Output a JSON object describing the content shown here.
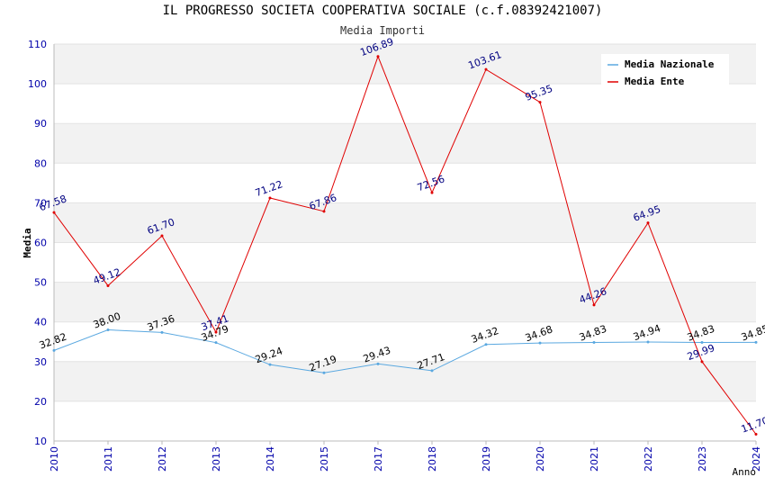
{
  "chart_data": {
    "type": "line",
    "title": "IL PROGRESSO SOCIETA COOPERATIVA SOCIALE (c.f.08392421007)",
    "subtitle": "Media Importi",
    "xlabel": "Anno",
    "ylabel": "Media",
    "ylim": [
      10,
      110
    ],
    "yticks": [
      "10",
      "20",
      "30",
      "40",
      "50",
      "60",
      "70",
      "80",
      "90",
      "100",
      "110"
    ],
    "categories": [
      "2010",
      "2011",
      "2012",
      "2013",
      "2014",
      "2015",
      "2017",
      "2018",
      "2019",
      "2020",
      "2021",
      "2022",
      "2023",
      "2024"
    ],
    "legend_position": "top-right",
    "grid": true,
    "series": [
      {
        "name": "Media Nazionale",
        "color": "#5aa8e0",
        "values": [
          32.82,
          38.0,
          37.36,
          34.79,
          29.24,
          27.19,
          29.43,
          27.71,
          34.32,
          34.68,
          34.83,
          34.94,
          34.83,
          34.85
        ],
        "labels": [
          "32.82",
          "38.00",
          "37.36",
          "34.79",
          "29.24",
          "27.19",
          "29.43",
          "27.71",
          "34.32",
          "34.68",
          "34.83",
          "34.94",
          "34.83",
          "34.85"
        ]
      },
      {
        "name": "Media Ente",
        "color": "#e00000",
        "values": [
          67.58,
          49.12,
          61.7,
          37.41,
          71.22,
          67.86,
          106.89,
          72.56,
          103.61,
          95.35,
          44.26,
          64.95,
          29.99,
          11.7
        ],
        "labels": [
          "67.58",
          "49.12",
          "61.70",
          "37.41",
          "71.22",
          "67.86",
          "106.89",
          "72.56",
          "103.61",
          "95.35",
          "44.26",
          "64.95",
          "29.99",
          "11.70"
        ]
      }
    ]
  }
}
